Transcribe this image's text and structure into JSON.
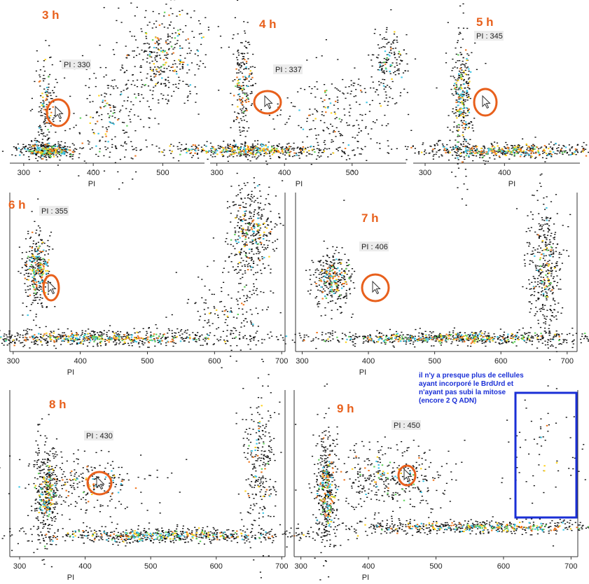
{
  "chart_data": [
    {
      "type": "scatter",
      "title": "3 h",
      "xlabel": "PI",
      "xlim": [
        280,
        560
      ],
      "xticks": [
        300,
        400,
        500
      ],
      "pi_value": 330,
      "pi_label": "PI : 330"
    },
    {
      "type": "scatter",
      "title": "4 h",
      "xlabel": "PI",
      "xlim": [
        290,
        580
      ],
      "xticks": [
        300,
        400,
        500
      ],
      "pi_value": 337,
      "pi_label": "PI : 337"
    },
    {
      "type": "scatter",
      "title": "5 h",
      "xlabel": "PI",
      "xlim": [
        285,
        495
      ],
      "xticks": [
        300,
        400
      ],
      "pi_value": 345,
      "pi_label": "PI : 345"
    },
    {
      "type": "scatter",
      "title": "6 h",
      "xlabel": "PI",
      "xlim": [
        295,
        705
      ],
      "xticks": [
        300,
        400,
        500,
        600,
        700
      ],
      "pi_value": 355,
      "pi_label": "PI : 355"
    },
    {
      "type": "scatter",
      "title": "7 h",
      "xlabel": "PI",
      "xlim": [
        290,
        715
      ],
      "xticks": [
        300,
        400,
        500,
        600,
        700
      ],
      "pi_value": 406,
      "pi_label": "PI : 406"
    },
    {
      "type": "scatter",
      "title": "8 h",
      "xlabel": "PI",
      "xlim": [
        285,
        705
      ],
      "xticks": [
        300,
        400,
        500,
        600,
        700
      ],
      "pi_value": 430,
      "pi_label": "PI : 430"
    },
    {
      "type": "scatter",
      "title": "9 h",
      "xlabel": "PI",
      "xlim": [
        290,
        710
      ],
      "xticks": [
        300,
        400,
        500,
        600,
        700
      ],
      "pi_value": 450,
      "pi_label": "PI : 450"
    }
  ],
  "annotation": {
    "lines": [
      "il n'y a presque plus de cellules",
      "ayant incorporé le BrdUrd et",
      "n'ayant pas subi la mitose",
      "(encore 2 Q ADN)"
    ]
  },
  "colors": {
    "title": "#e8601c",
    "circle": "#e8601c",
    "box": "#1a2fd6",
    "dot": "#111111",
    "density_low": "#39c6e6",
    "density_mid": "#5fd35a",
    "density_high": "#ffd21a",
    "density_peak": "#f07820"
  }
}
